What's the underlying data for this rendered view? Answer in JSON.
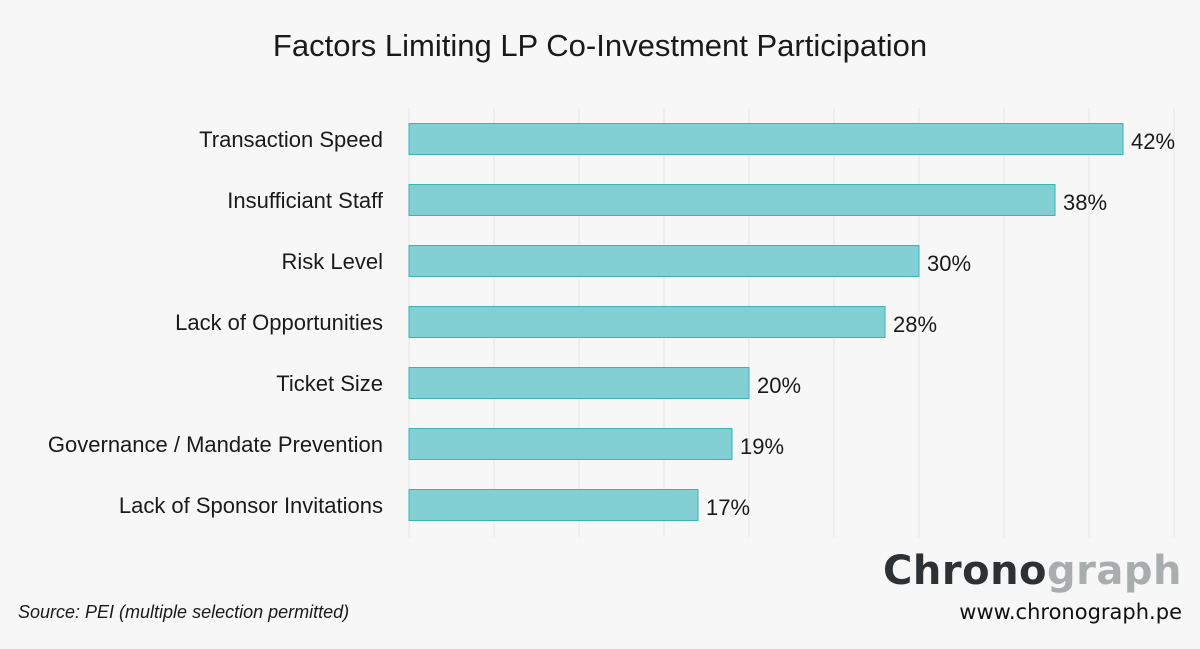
{
  "chart_data": {
    "type": "bar",
    "orientation": "horizontal",
    "title": "Factors Limiting LP Co-Investment Participation",
    "categories": [
      "Transaction Speed",
      "Insufficiant Staff",
      "Risk Level",
      "Lack of Opportunities",
      "Ticket Size",
      "Governance / Mandate Prevention",
      "Lack of Sponsor Invitations"
    ],
    "values": [
      42,
      38,
      30,
      28,
      20,
      19,
      17
    ],
    "data_labels": [
      "42%",
      "38%",
      "30%",
      "28%",
      "20%",
      "19%",
      "17%"
    ],
    "xlim": [
      0,
      45
    ],
    "grid": true,
    "grid_step": 5,
    "colors": {
      "bar_fill": "#82d0d4",
      "bar_stroke": "#3fb2b4",
      "grid": "#e6e6e6",
      "background": "#f7f7f7"
    }
  },
  "footer": {
    "source": "Source: PEI (multiple selection permitted)",
    "logo_part1": "Chrono",
    "logo_part2": "graph",
    "url": "www.chronograph.pe"
  }
}
